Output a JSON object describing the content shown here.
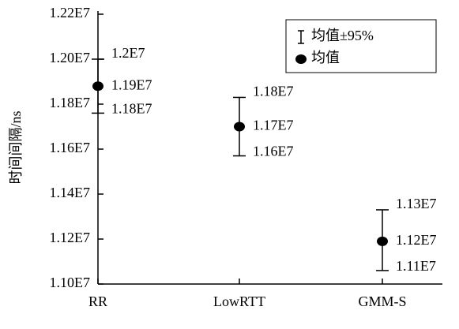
{
  "chart_data": {
    "type": "errorbar",
    "ylabel": "时间间隔/ns",
    "categories": [
      "RR",
      "LowRTT",
      "GMM-S"
    ],
    "series": [
      {
        "name": "均值",
        "error_name": "均值±95%",
        "color": "#000000",
        "values": [
          11880000,
          11700000,
          11190000
        ],
        "value_labels": [
          "1.19E7",
          "1.17E7",
          "1.12E7"
        ],
        "upper": [
          12000000,
          11830000,
          11330000
        ],
        "upper_labels": [
          "1.2E7",
          "1.18E7",
          "1.13E7"
        ],
        "lower": [
          11760000,
          11570000,
          11060000
        ],
        "lower_labels": [
          "1.18E7",
          "1.16E7",
          "1.11E7"
        ]
      }
    ],
    "ylim": [
      11000000,
      12200000
    ],
    "yticks": [
      {
        "value": 11000000,
        "label": "1.10E7"
      },
      {
        "value": 11200000,
        "label": "1.12E7"
      },
      {
        "value": 11400000,
        "label": "1.14E7"
      },
      {
        "value": 11600000,
        "label": "1.16E7"
      },
      {
        "value": 11800000,
        "label": "1.18E7"
      },
      {
        "value": 12000000,
        "label": "1.20E7"
      },
      {
        "value": 12200000,
        "label": "1.22E7"
      }
    ],
    "legend": "upper right",
    "grid": false
  }
}
